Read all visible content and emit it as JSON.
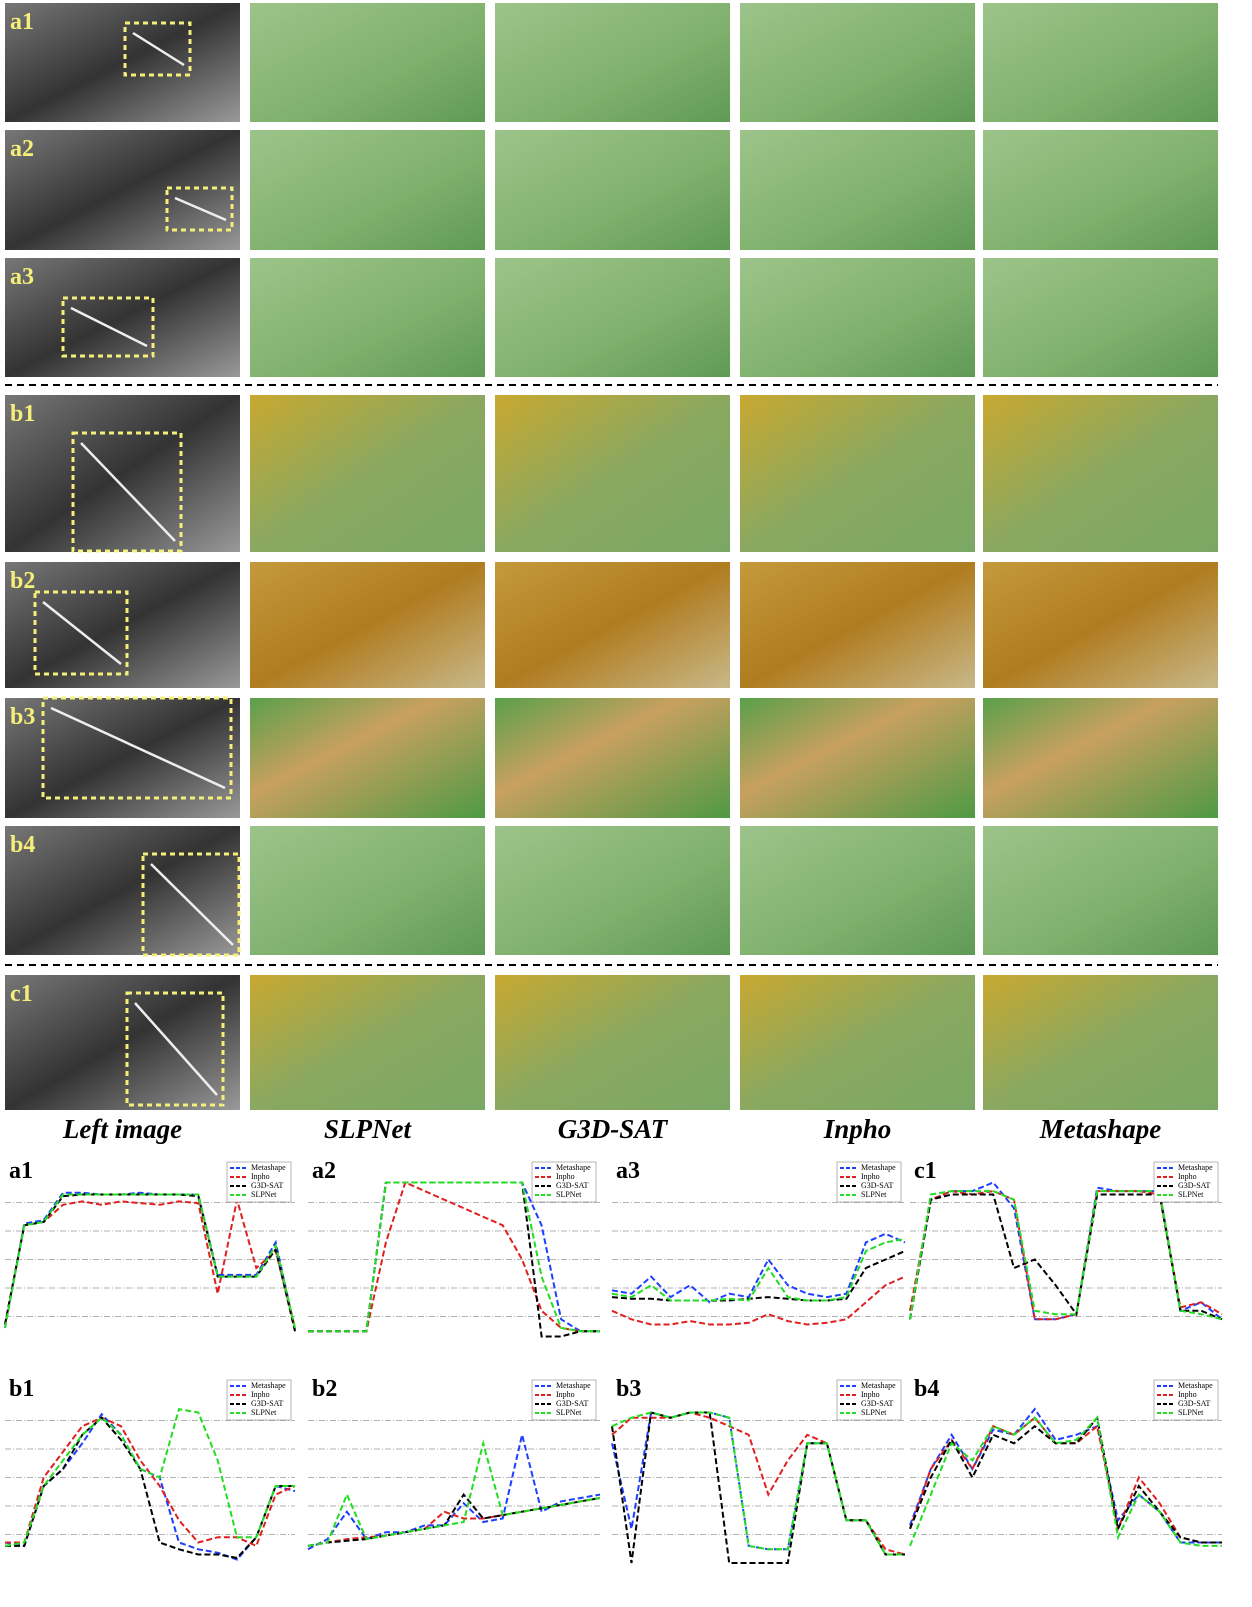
{
  "figure": {
    "row_labels": [
      "a1",
      "a2",
      "a3",
      "b1",
      "b2",
      "b3",
      "b4",
      "c1"
    ],
    "column_labels": [
      "Left image",
      "SLPNet",
      "G3D-SAT",
      "Inpho",
      "Metashape"
    ]
  },
  "chart_data": [
    {
      "type": "line",
      "title": "a1",
      "ylim": [
        0,
        100
      ],
      "grid": true,
      "series": [
        {
          "name": "Metashape",
          "color": "#1f3fff",
          "values": [
            10,
            71,
            73,
            89,
            89,
            88,
            88,
            89,
            88,
            88,
            88,
            41,
            41,
            41,
            60,
            9
          ]
        },
        {
          "name": "Inpho",
          "color": "#e02020",
          "values": [
            12,
            70,
            72,
            82,
            84,
            82,
            84,
            83,
            82,
            84,
            83,
            30,
            85,
            45,
            55,
            10
          ]
        },
        {
          "name": "G3D-SAT",
          "color": "#000000",
          "values": [
            12,
            70,
            72,
            87,
            88,
            88,
            88,
            88,
            88,
            88,
            87,
            40,
            40,
            40,
            56,
            8
          ]
        },
        {
          "name": "SLPNet",
          "color": "#22dd22",
          "values": [
            10,
            70,
            72,
            88,
            88,
            88,
            88,
            88,
            88,
            88,
            88,
            40,
            40,
            40,
            58,
            10
          ]
        }
      ]
    },
    {
      "type": "line",
      "title": "a2",
      "ylim": [
        0,
        100
      ],
      "grid": true,
      "series": [
        {
          "name": "Metashape",
          "color": "#1f3fff",
          "values": [
            8,
            8,
            8,
            8,
            95,
            95,
            95,
            95,
            95,
            95,
            95,
            95,
            70,
            15,
            8,
            8
          ]
        },
        {
          "name": "Inpho",
          "color": "#e02020",
          "values": [
            8,
            8,
            8,
            8,
            60,
            95,
            90,
            85,
            80,
            75,
            70,
            50,
            20,
            10,
            8,
            8
          ]
        },
        {
          "name": "G3D-SAT",
          "color": "#000000",
          "values": [
            8,
            8,
            8,
            8,
            95,
            95,
            95,
            95,
            95,
            95,
            95,
            95,
            5,
            5,
            8,
            8
          ]
        },
        {
          "name": "SLPNet",
          "color": "#22dd22",
          "values": [
            8,
            8,
            8,
            8,
            95,
            95,
            95,
            95,
            95,
            95,
            95,
            95,
            40,
            10,
            8,
            8
          ]
        }
      ]
    },
    {
      "type": "line",
      "title": "a3",
      "ylim": [
        0,
        100
      ],
      "grid": true,
      "series": [
        {
          "name": "Metashape",
          "color": "#1f3fff",
          "values": [
            32,
            30,
            40,
            28,
            35,
            25,
            30,
            28,
            50,
            35,
            30,
            28,
            30,
            60,
            65,
            60
          ]
        },
        {
          "name": "Inpho",
          "color": "#e02020",
          "values": [
            20,
            15,
            12,
            12,
            14,
            12,
            12,
            13,
            18,
            14,
            12,
            13,
            15,
            25,
            35,
            40
          ]
        },
        {
          "name": "G3D-SAT",
          "color": "#000000",
          "values": [
            28,
            27,
            27,
            26,
            26,
            26,
            26,
            27,
            28,
            27,
            26,
            26,
            27,
            45,
            50,
            55
          ]
        },
        {
          "name": "SLPNet",
          "color": "#22dd22",
          "values": [
            30,
            28,
            35,
            26,
            26,
            26,
            27,
            26,
            45,
            28,
            26,
            26,
            28,
            55,
            60,
            62
          ]
        }
      ]
    },
    {
      "type": "line",
      "title": "c1",
      "ylim": [
        0,
        100
      ],
      "grid": true,
      "series": [
        {
          "name": "Metashape",
          "color": "#1f3fff",
          "values": [
            15,
            85,
            90,
            90,
            95,
            80,
            15,
            15,
            18,
            92,
            90,
            90,
            90,
            20,
            25,
            15
          ]
        },
        {
          "name": "Inpho",
          "color": "#e02020",
          "values": [
            20,
            85,
            90,
            88,
            90,
            85,
            15,
            15,
            18,
            90,
            90,
            90,
            88,
            22,
            25,
            18
          ]
        },
        {
          "name": "G3D-SAT",
          "color": "#000000",
          "values": [
            15,
            85,
            88,
            88,
            88,
            45,
            50,
            35,
            18,
            88,
            88,
            88,
            88,
            20,
            20,
            15
          ]
        },
        {
          "name": "SLPNet",
          "color": "#22dd22",
          "values": [
            15,
            88,
            90,
            90,
            90,
            85,
            20,
            18,
            18,
            90,
            90,
            90,
            90,
            20,
            18,
            15
          ]
        }
      ]
    },
    {
      "type": "line",
      "title": "b1",
      "ylim": [
        0,
        100
      ],
      "grid": true,
      "series": [
        {
          "name": "Metashape",
          "color": "#1f3fff",
          "values": [
            12,
            10,
            45,
            55,
            70,
            87,
            75,
            55,
            50,
            12,
            8,
            6,
            2,
            15,
            45,
            42
          ]
        },
        {
          "name": "Inpho",
          "color": "#e02020",
          "values": [
            12,
            12,
            50,
            65,
            80,
            85,
            80,
            60,
            45,
            25,
            12,
            15,
            15,
            10,
            40,
            45
          ]
        },
        {
          "name": "G3D-SAT",
          "color": "#000000",
          "values": [
            10,
            10,
            45,
            55,
            75,
            85,
            72,
            55,
            12,
            8,
            5,
            5,
            3,
            15,
            45,
            45
          ]
        },
        {
          "name": "SLPNet",
          "color": "#22dd22",
          "values": [
            10,
            12,
            45,
            60,
            75,
            85,
            75,
            55,
            50,
            90,
            88,
            60,
            15,
            15,
            45,
            45
          ]
        }
      ]
    },
    {
      "type": "line",
      "title": "b2",
      "ylim": [
        0,
        100
      ],
      "grid": true,
      "series": [
        {
          "name": "Metashape",
          "color": "#1f3fff",
          "values": [
            8,
            14,
            30,
            14,
            18,
            18,
            22,
            22,
            35,
            24,
            26,
            75,
            30,
            36,
            38,
            40
          ]
        },
        {
          "name": "Inpho",
          "color": "#e02020",
          "values": [
            10,
            12,
            14,
            15,
            16,
            18,
            20,
            30,
            26,
            26,
            28,
            30,
            32,
            34,
            36,
            38
          ]
        },
        {
          "name": "G3D-SAT",
          "color": "#000000",
          "values": [
            10,
            12,
            13,
            14,
            16,
            18,
            20,
            22,
            40,
            26,
            28,
            30,
            32,
            34,
            36,
            38
          ]
        },
        {
          "name": "SLPNet",
          "color": "#22dd22",
          "values": [
            10,
            12,
            40,
            14,
            16,
            18,
            20,
            22,
            24,
            70,
            28,
            30,
            32,
            34,
            36,
            38
          ]
        }
      ]
    },
    {
      "type": "line",
      "title": "b3",
      "ylim": [
        0,
        100
      ],
      "grid": true,
      "series": [
        {
          "name": "Metashape",
          "color": "#1f3fff",
          "values": [
            70,
            20,
            88,
            85,
            88,
            88,
            85,
            10,
            8,
            8,
            70,
            70,
            25,
            25,
            5,
            5
          ]
        },
        {
          "name": "Inpho",
          "color": "#e02020",
          "values": [
            75,
            85,
            85,
            85,
            88,
            85,
            80,
            75,
            40,
            60,
            75,
            70,
            25,
            25,
            8,
            5
          ]
        },
        {
          "name": "G3D-SAT",
          "color": "#000000",
          "values": [
            80,
            0,
            88,
            85,
            88,
            88,
            0,
            0,
            0,
            0,
            70,
            70,
            25,
            25,
            5,
            5
          ]
        },
        {
          "name": "SLPNet",
          "color": "#22dd22",
          "values": [
            80,
            85,
            88,
            85,
            88,
            88,
            85,
            10,
            8,
            8,
            70,
            70,
            25,
            25,
            5,
            5
          ]
        }
      ]
    },
    {
      "type": "line",
      "title": "b4",
      "ylim": [
        0,
        100
      ],
      "grid": true,
      "series": [
        {
          "name": "Metashape",
          "color": "#1f3fff",
          "values": [
            22,
            55,
            75,
            55,
            78,
            75,
            90,
            72,
            75,
            80,
            25,
            40,
            30,
            12,
            12,
            12
          ]
        },
        {
          "name": "Inpho",
          "color": "#e02020",
          "values": [
            20,
            55,
            72,
            55,
            80,
            75,
            85,
            70,
            70,
            80,
            20,
            50,
            35,
            15,
            12,
            12
          ]
        },
        {
          "name": "G3D-SAT",
          "color": "#000000",
          "values": [
            20,
            50,
            72,
            50,
            75,
            70,
            80,
            70,
            70,
            85,
            20,
            45,
            30,
            15,
            12,
            12
          ]
        },
        {
          "name": "SLPNet",
          "color": "#22dd22",
          "values": [
            10,
            40,
            70,
            60,
            80,
            75,
            85,
            70,
            72,
            85,
            15,
            40,
            30,
            12,
            10,
            10
          ]
        }
      ]
    }
  ]
}
